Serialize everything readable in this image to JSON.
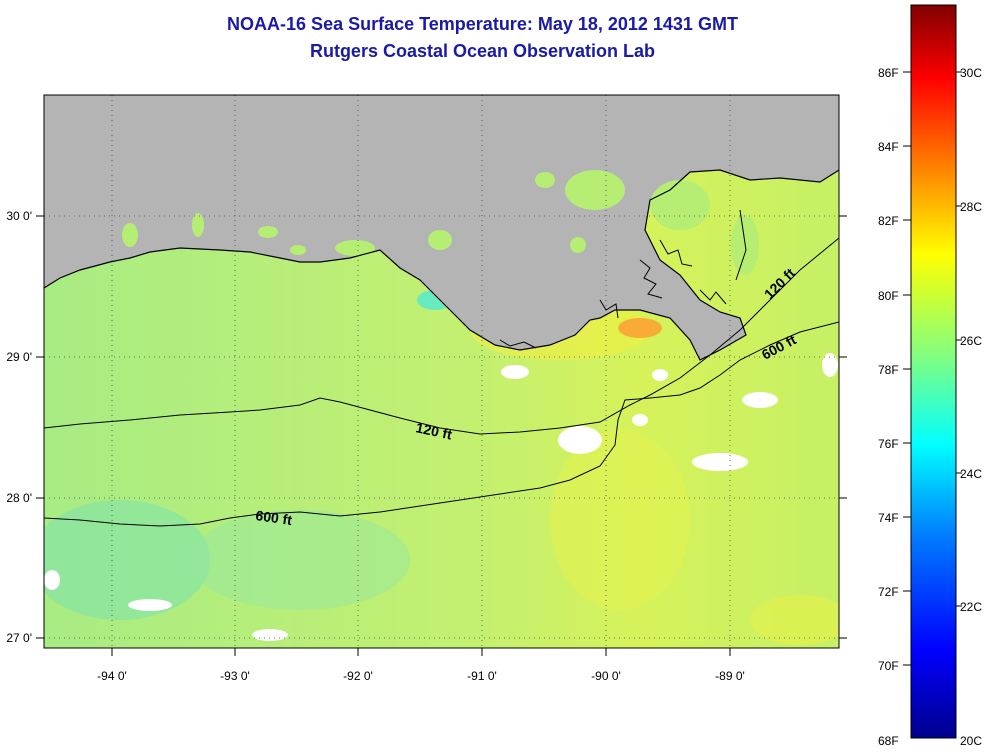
{
  "title": {
    "line1": "NOAA-16 Sea Surface Temperature:  May 18, 2012 1431 GMT",
    "line2": "Rutgers Coastal Ocean Observation Lab"
  },
  "map": {
    "land_color": "#b4b4b4",
    "ocean_base_color": "#c8f060",
    "cloud_color": "#ffffff",
    "grid": "dotted",
    "lon_labels": [
      "-94 0'",
      "-93 0'",
      "-92 0'",
      "-91 0'",
      "-90 0'",
      "-89 0'"
    ],
    "lat_labels": [
      "30 0'",
      "29 0'",
      "28 0'",
      "27 0'"
    ],
    "contour_labels": [
      "120 ft",
      "600 ft",
      "120 ft",
      "600 ft"
    ]
  },
  "colorbar": {
    "fahrenheit_labels": [
      "86F",
      "84F",
      "82F",
      "80F",
      "78F",
      "76F",
      "74F",
      "72F",
      "70F",
      "68F"
    ],
    "celsius_labels": [
      "30C",
      "28C",
      "26C",
      "24C",
      "22C",
      "20C"
    ],
    "colors": [
      "#800000",
      "#ff0000",
      "#ff8000",
      "#ffff00",
      "#80ff80",
      "#00ffff",
      "#0080ff",
      "#0000ff",
      "#00008c"
    ]
  }
}
